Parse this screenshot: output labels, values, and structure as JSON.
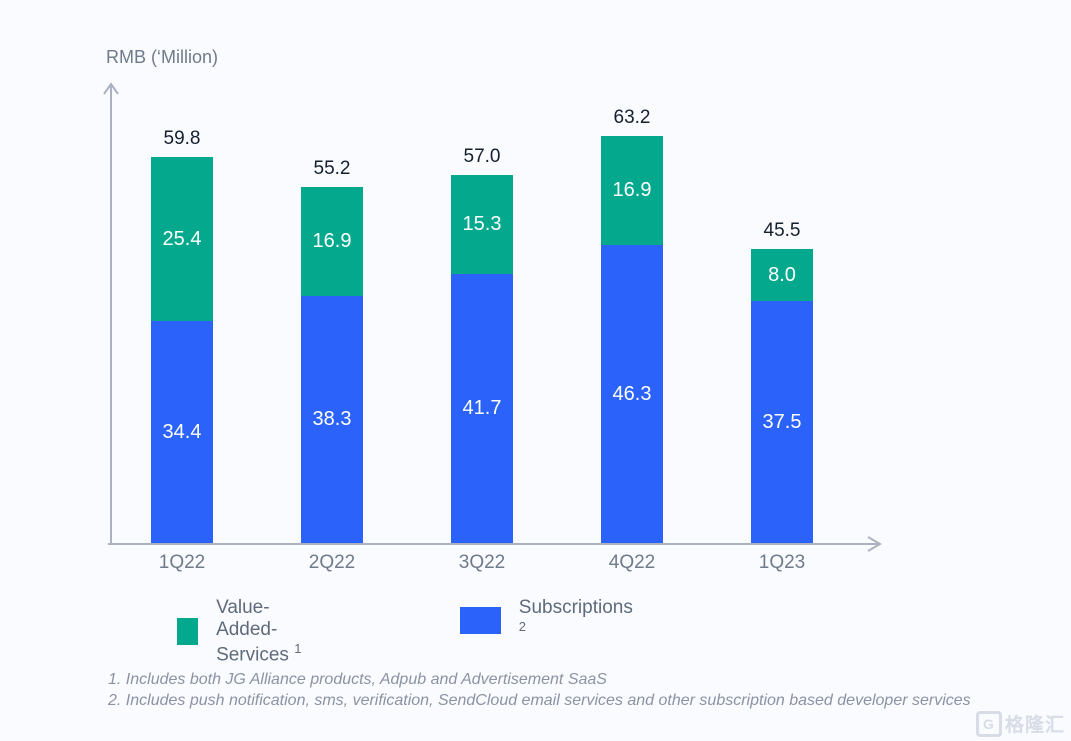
{
  "chart_data": {
    "type": "bar",
    "subtype": "stacked",
    "categories": [
      "1Q22",
      "2Q22",
      "3Q22",
      "4Q22",
      "1Q23"
    ],
    "series": [
      {
        "name": "Subscriptions",
        "color": "#2b63fa",
        "values": [
          34.4,
          38.3,
          41.7,
          46.3,
          37.5
        ]
      },
      {
        "name": "Value-Added-Services",
        "color": "#04a98d",
        "values": [
          25.4,
          16.9,
          15.3,
          16.9,
          8.0
        ]
      }
    ],
    "totals": [
      59.8,
      55.2,
      57.0,
      63.2,
      45.5
    ],
    "ylabel": "RMB (‘Million)",
    "xlabel": "",
    "ylim": [
      0,
      70
    ],
    "grid": false,
    "legend_position": "bottom",
    "value_label_color_inside": "#ffffff",
    "value_label_color_total": "#15202e"
  },
  "legend": {
    "items": [
      {
        "label": "Value-Added-Services",
        "superscript": "1",
        "color": "#04a98d"
      },
      {
        "label": "Subscriptions",
        "superscript": "2",
        "color": "#2b63fa"
      }
    ]
  },
  "footnotes": [
    "1. Includes both JG Alliance products, Adpub and Advertisement SaaS",
    "2. Includes push notification, sms, verification, SendCloud email services and other subscription based developer services"
  ],
  "watermark": {
    "logo": "G",
    "text": "格隆汇"
  },
  "colors": {
    "axis": "#aab2c0",
    "background": "#fafbff",
    "tick_label": "#6f7b8a"
  }
}
